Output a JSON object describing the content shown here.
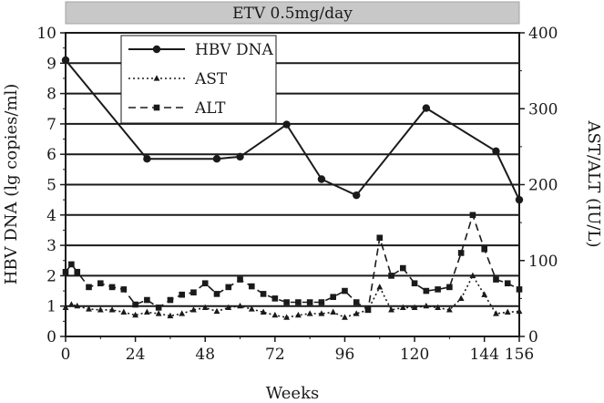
{
  "chart_data": {
    "type": "line",
    "banner": "ETV 0.5mg/day",
    "xlabel": "Weeks",
    "ylabel_left": "HBV DNA (lg copies/ml)",
    "ylabel_right": "AST/ALT (IU/L)",
    "xlim": [
      0,
      156
    ],
    "ylim_left": [
      0,
      10
    ],
    "ylim_right": [
      0,
      400
    ],
    "x_ticks": [
      0,
      24,
      48,
      72,
      96,
      120,
      144,
      156
    ],
    "y_ticks_left": [
      0,
      1,
      2,
      3,
      4,
      5,
      6,
      7,
      8,
      9,
      10
    ],
    "y_ticks_right": [
      0,
      100,
      200,
      300,
      400
    ],
    "grid": "horizontal",
    "legend_position": "top-left",
    "series": [
      {
        "name": "HBV DNA",
        "axis": "left",
        "style": "solid",
        "marker": "circle",
        "x": [
          0,
          28,
          52,
          60,
          76,
          88,
          100,
          124,
          148,
          156
        ],
        "y": [
          9.1,
          5.85,
          5.85,
          5.92,
          6.98,
          5.18,
          4.65,
          7.52,
          6.1,
          4.5
        ]
      },
      {
        "name": "AST",
        "axis": "right",
        "style": "dotted",
        "marker": "triangle",
        "x": [
          0,
          2,
          4,
          8,
          12,
          16,
          20,
          24,
          28,
          32,
          36,
          40,
          44,
          48,
          52,
          56,
          60,
          64,
          68,
          72,
          76,
          80,
          84,
          88,
          92,
          96,
          100,
          104,
          108,
          112,
          116,
          120,
          124,
          128,
          132,
          136,
          140,
          144,
          148,
          152,
          156
        ],
        "y": [
          38,
          42,
          40,
          36,
          35,
          35,
          32,
          28,
          32,
          30,
          27,
          30,
          35,
          38,
          33,
          38,
          40,
          36,
          32,
          28,
          25,
          28,
          30,
          30,
          32,
          25,
          30,
          35,
          65,
          35,
          38,
          38,
          40,
          38,
          35,
          50,
          80,
          55,
          30,
          32,
          33
        ]
      },
      {
        "name": "ALT",
        "axis": "right",
        "style": "dashed",
        "marker": "square",
        "x": [
          0,
          2,
          4,
          8,
          12,
          16,
          20,
          24,
          28,
          32,
          36,
          40,
          44,
          48,
          52,
          56,
          60,
          64,
          68,
          72,
          76,
          80,
          84,
          88,
          92,
          96,
          100,
          104,
          108,
          112,
          116,
          120,
          124,
          128,
          132,
          136,
          140,
          144,
          148,
          152,
          156
        ],
        "y": [
          85,
          95,
          85,
          65,
          70,
          65,
          62,
          42,
          48,
          38,
          48,
          55,
          58,
          70,
          56,
          65,
          75,
          66,
          56,
          50,
          45,
          45,
          45,
          45,
          52,
          60,
          45,
          35,
          130,
          80,
          90,
          70,
          60,
          62,
          65,
          110,
          160,
          115,
          75,
          70,
          62
        ]
      }
    ]
  }
}
